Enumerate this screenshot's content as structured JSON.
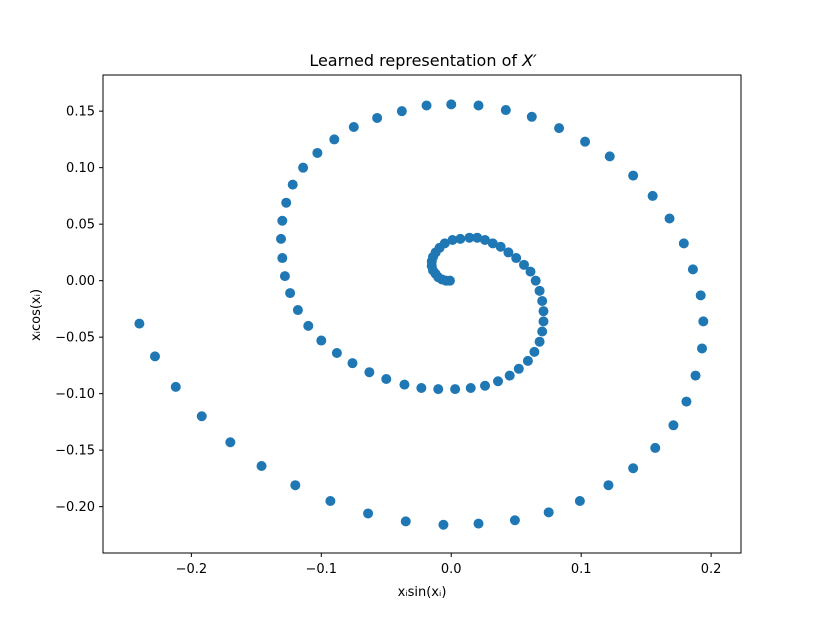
{
  "chart_data": {
    "type": "scatter",
    "title": "Learned representation of X′",
    "title_prefix": "Learned representation of ",
    "title_var": "X′",
    "xlabel": "xᵢsin(xᵢ)",
    "ylabel": "xᵢcos(xᵢ)",
    "xlim": [
      -0.268,
      0.223
    ],
    "ylim": [
      -0.241,
      0.182
    ],
    "xticks": [
      -0.2,
      -0.1,
      0.0,
      0.1,
      0.2
    ],
    "xtick_labels": [
      "−0.2",
      "−0.1",
      "0.0",
      "0.1",
      "0.2"
    ],
    "yticks": [
      0.15,
      0.1,
      0.05,
      0.0,
      -0.05,
      -0.1,
      -0.15,
      -0.2
    ],
    "ytick_labels": [
      "0.15",
      "0.10",
      "0.05",
      "0.00",
      "−0.05",
      "−0.10",
      "−0.15",
      "−0.20"
    ],
    "grid": false,
    "marker_color": "#1f77b4",
    "series": [
      {
        "x": [
          -0.001,
          -0.004,
          -0.007,
          -0.01,
          -0.012,
          -0.014,
          -0.015,
          -0.015,
          -0.014,
          -0.012,
          -0.009,
          -0.005,
          0.001,
          0.007,
          0.014,
          0.02,
          0.026,
          0.032,
          0.038,
          0.044,
          0.05,
          0.056,
          0.061,
          0.065,
          0.068,
          0.07,
          0.071,
          0.071,
          0.07,
          0.068,
          0.064,
          0.059,
          0.052,
          0.045,
          0.036,
          0.026,
          0.015,
          0.003,
          -0.01,
          -0.023,
          -0.036,
          -0.05,
          -0.063,
          -0.076,
          -0.088,
          -0.1,
          -0.11,
          -0.118,
          -0.124,
          -0.128,
          -0.13,
          -0.131,
          -0.13,
          -0.127,
          -0.122,
          -0.114,
          -0.103,
          -0.09,
          -0.075,
          -0.057,
          -0.038,
          -0.019,
          0.0,
          0.021,
          0.042,
          0.062,
          0.083,
          0.103,
          0.122,
          0.14,
          0.155,
          0.168,
          0.179,
          0.186,
          0.192,
          0.194,
          0.193,
          0.188,
          0.181,
          0.171,
          0.157,
          0.14,
          0.121,
          0.099,
          0.075,
          0.049,
          0.021,
          -0.006,
          -0.035,
          -0.064,
          -0.093,
          -0.12,
          -0.146,
          -0.17,
          -0.192,
          -0.212,
          -0.228,
          -0.24
        ],
        "y": [
          0.0,
          0.0,
          0.001,
          0.003,
          0.006,
          0.009,
          0.013,
          0.017,
          0.021,
          0.025,
          0.029,
          0.033,
          0.036,
          0.037,
          0.038,
          0.038,
          0.036,
          0.033,
          0.03,
          0.025,
          0.02,
          0.014,
          0.008,
          0.0,
          -0.009,
          -0.018,
          -0.027,
          -0.036,
          -0.045,
          -0.054,
          -0.063,
          -0.071,
          -0.078,
          -0.084,
          -0.089,
          -0.093,
          -0.095,
          -0.096,
          -0.096,
          -0.095,
          -0.092,
          -0.087,
          -0.081,
          -0.073,
          -0.064,
          -0.053,
          -0.04,
          -0.026,
          -0.011,
          0.004,
          0.02,
          0.037,
          0.053,
          0.069,
          0.085,
          0.1,
          0.113,
          0.125,
          0.136,
          0.144,
          0.15,
          0.155,
          0.156,
          0.155,
          0.151,
          0.145,
          0.135,
          0.123,
          0.11,
          0.093,
          0.075,
          0.055,
          0.033,
          0.01,
          -0.013,
          -0.036,
          -0.06,
          -0.084,
          -0.107,
          -0.128,
          -0.148,
          -0.166,
          -0.181,
          -0.195,
          -0.205,
          -0.212,
          -0.215,
          -0.216,
          -0.213,
          -0.206,
          -0.195,
          -0.181,
          -0.164,
          -0.143,
          -0.12,
          -0.094,
          -0.067,
          -0.038
        ]
      }
    ]
  }
}
